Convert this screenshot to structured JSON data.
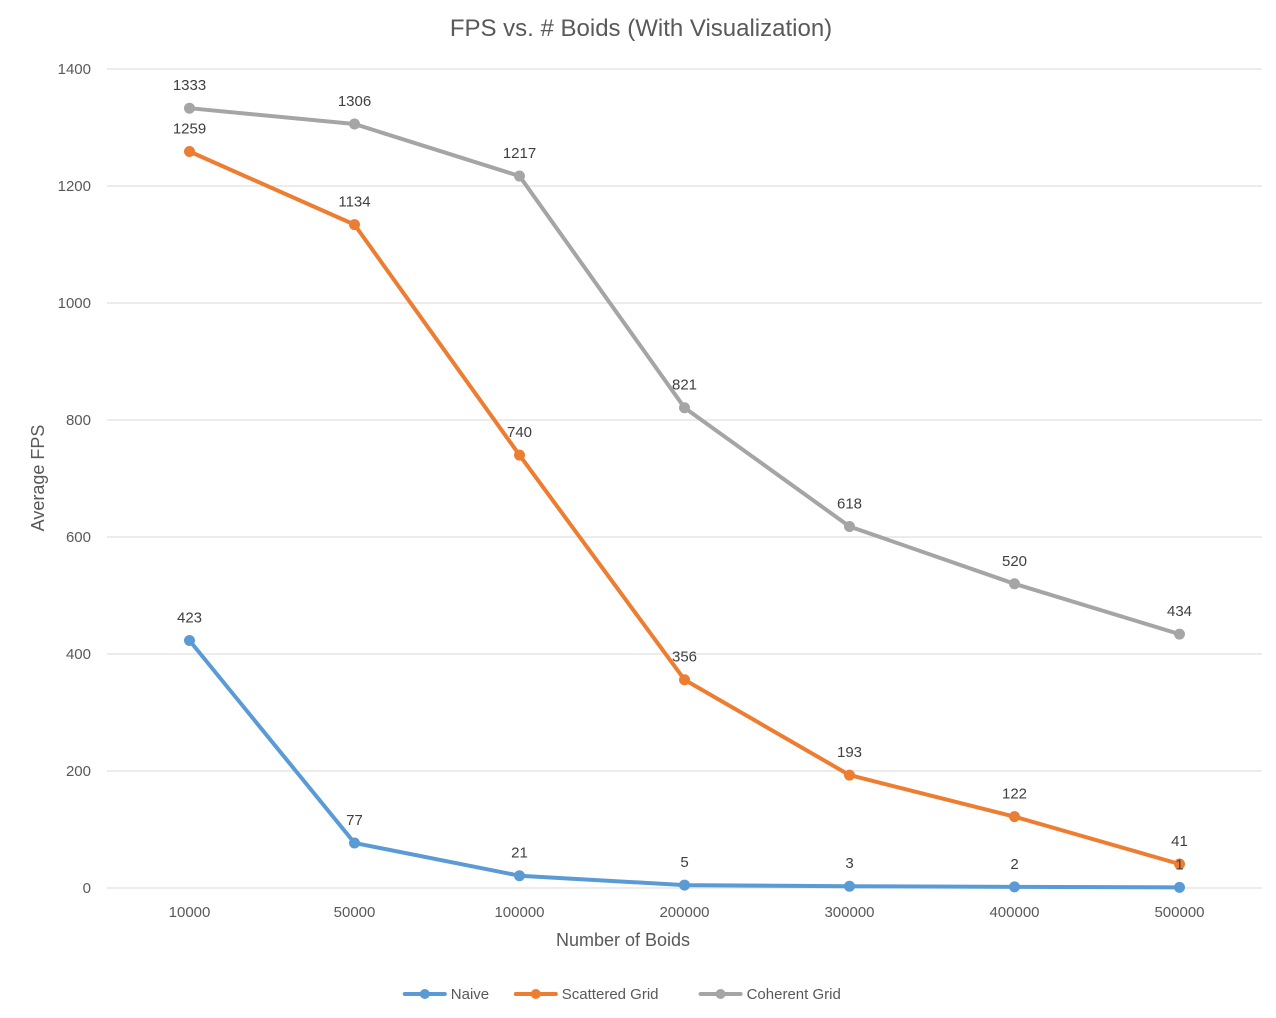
{
  "chart_data": {
    "type": "line",
    "title": "FPS vs. # Boids (With Visualization)",
    "xlabel": "Number of Boids",
    "ylabel": "Average FPS",
    "categories": [
      "10000",
      "50000",
      "100000",
      "200000",
      "300000",
      "400000",
      "500000"
    ],
    "ylim": [
      0,
      1400
    ],
    "yticks": [
      "0",
      "200",
      "400",
      "600",
      "800",
      "1000",
      "1200",
      "1400"
    ],
    "grid": true,
    "legend_position": "bottom",
    "series": [
      {
        "name": "Naive",
        "color": "#5b9bd5",
        "values": [
          423,
          77,
          21,
          5,
          3,
          2,
          1
        ]
      },
      {
        "name": "Scattered Grid",
        "color": "#ed7d31",
        "values": [
          1259,
          1134,
          740,
          356,
          193,
          122,
          41
        ]
      },
      {
        "name": "Coherent Grid",
        "color": "#a5a5a5",
        "values": [
          1333,
          1306,
          1217,
          821,
          618,
          520,
          434
        ]
      }
    ]
  }
}
